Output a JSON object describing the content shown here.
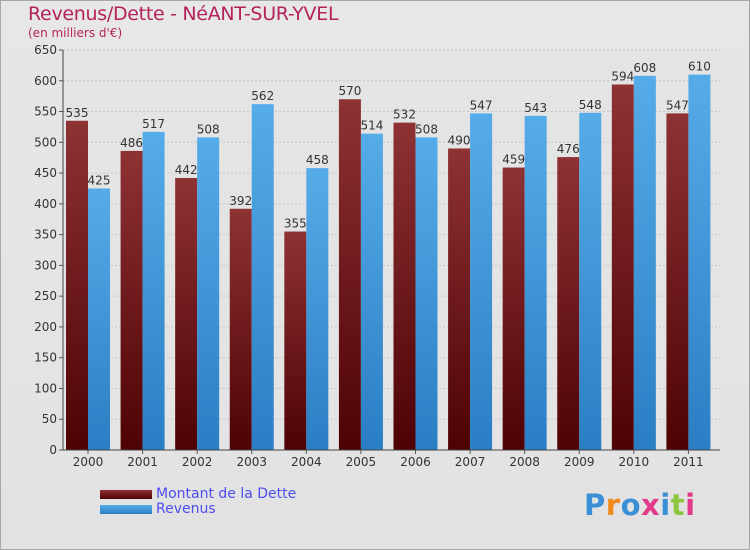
{
  "header": {
    "title": "Revenus/Dette - NéANT-SUR-YVEL",
    "subtitle": "(en milliers d'€)"
  },
  "legend": {
    "items": [
      {
        "label": "Montant de la Dette",
        "color": "#6e0e10"
      },
      {
        "label": "Revenus",
        "color": "#3b9ae0"
      }
    ]
  },
  "logo": {
    "text": "Proxiti",
    "colors": [
      "#3a8fd6",
      "#f08a1c",
      "#3a8fd6",
      "#e23a8a",
      "#3a8fd6",
      "#8cc63f",
      "#e23a8a"
    ]
  },
  "chart_data": {
    "type": "bar",
    "title": "Revenus/Dette - NéANT-SUR-YVEL",
    "ylabel": "(en milliers d'€)",
    "categories": [
      "2000",
      "2001",
      "2002",
      "2003",
      "2004",
      "2005",
      "2006",
      "2007",
      "2008",
      "2009",
      "2010",
      "2011"
    ],
    "series": [
      {
        "name": "Montant de la Dette",
        "values": [
          535,
          486,
          442,
          392,
          355,
          570,
          532,
          490,
          459,
          476,
          594,
          547
        ],
        "color": "#6e0e10"
      },
      {
        "name": "Revenus",
        "values": [
          425,
          517,
          508,
          562,
          458,
          514,
          508,
          547,
          543,
          548,
          608,
          610
        ],
        "color": "#3b9ae0"
      }
    ],
    "ylim": [
      0,
      650
    ],
    "yticks": [
      0,
      50,
      100,
      150,
      200,
      250,
      300,
      350,
      400,
      450,
      500,
      550,
      600,
      650
    ],
    "grid": true
  }
}
